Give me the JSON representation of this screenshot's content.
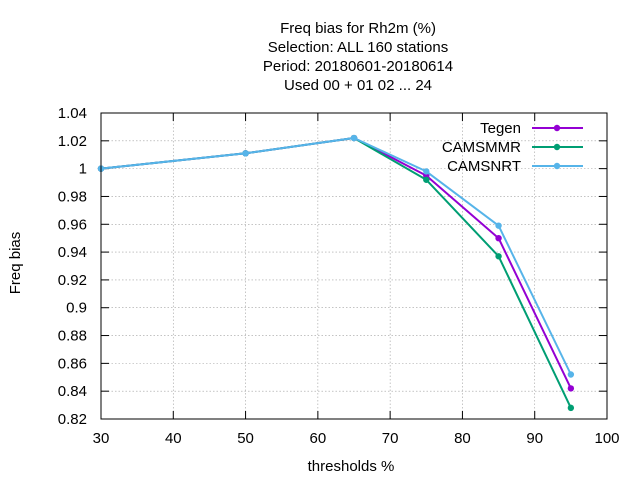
{
  "chart_data": {
    "type": "line",
    "title_lines": [
      "Freq bias  for Rh2m (%)",
      "Selection: ALL    160 stations",
      "Period: 20180601-20180614",
      "Used  00 + 01 02 ... 24"
    ],
    "xlabel": "thresholds %",
    "ylabel": "Freq bias",
    "xlim": [
      30,
      100
    ],
    "ylim": [
      0.82,
      1.04
    ],
    "xticks": [
      30,
      40,
      50,
      60,
      70,
      80,
      90,
      100
    ],
    "yticks": [
      0.82,
      0.84,
      0.86,
      0.88,
      0.9,
      0.92,
      0.94,
      0.96,
      0.98,
      1,
      1.02,
      1.04
    ],
    "x": [
      30,
      50,
      65,
      75,
      85,
      95
    ],
    "grid": true,
    "legend_position": "top-right",
    "series": [
      {
        "name": "Tegen",
        "color": "#9400d3",
        "values": [
          1.0,
          1.011,
          1.022,
          0.995,
          0.95,
          0.842
        ]
      },
      {
        "name": "CAMSMMR",
        "color": "#009e73",
        "values": [
          1.0,
          1.011,
          1.022,
          0.992,
          0.937,
          0.828
        ]
      },
      {
        "name": "CAMSNRT",
        "color": "#56b4e9",
        "values": [
          1.0,
          1.011,
          1.022,
          0.998,
          0.959,
          0.852
        ]
      }
    ]
  }
}
